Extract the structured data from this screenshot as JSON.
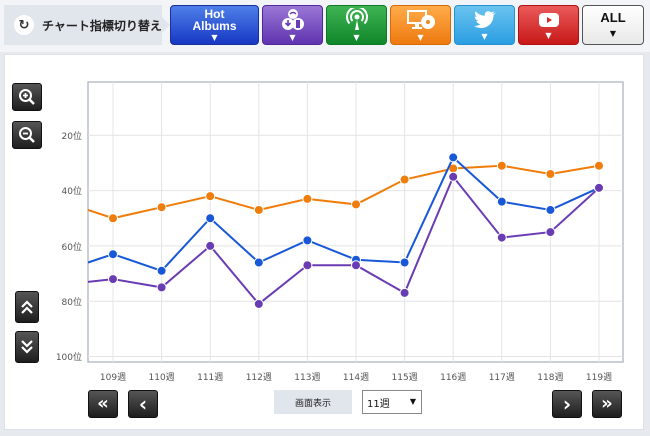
{
  "header": {
    "switch_label": "チャート指標切り替え",
    "switch_icon": "refresh-icon",
    "tabs": [
      {
        "name": "hot-albums",
        "label": "Hot Albums",
        "label_line1": "Hot",
        "label_line2": "Albums",
        "color": "#2148d2"
      },
      {
        "name": "download",
        "icon": "download-icon",
        "color": "#7348c2"
      },
      {
        "name": "radio",
        "icon": "radio-icon",
        "color": "#1b9a36"
      },
      {
        "name": "pc-cd",
        "icon": "pc-cd-icon",
        "color": "#f08a20"
      },
      {
        "name": "twitter",
        "icon": "twitter-icon",
        "color": "#38a8e6"
      },
      {
        "name": "youtube",
        "icon": "youtube-icon",
        "color": "#d42a2a"
      },
      {
        "name": "all",
        "label": "ALL",
        "color": "#f0f0f0"
      }
    ],
    "dropdown_arrow": "▼"
  },
  "controls": {
    "zoom_in": "zoom-in-icon",
    "zoom_out": "zoom-out-icon",
    "scroll_up": "double-chevron-up-icon",
    "scroll_down": "double-chevron-down-icon",
    "first": "«",
    "prev": "‹",
    "next": "›",
    "last": "»",
    "mode_label": "画面表示",
    "mode_value": "11週"
  },
  "chart_data": {
    "type": "line",
    "title": "",
    "xlabel": "",
    "ylabel": "",
    "categories": [
      "109週",
      "110週",
      "111週",
      "112週",
      "113週",
      "114週",
      "115週",
      "116週",
      "117週",
      "118週",
      "119週"
    ],
    "y_ticks": [
      "20位",
      "40位",
      "60位",
      "80位",
      "100位"
    ],
    "y_tick_values": [
      20,
      40,
      60,
      80,
      100
    ],
    "ylim": [
      0,
      100
    ],
    "y_inverted": true,
    "grid": true,
    "series": [
      {
        "name": "orange",
        "color": "#f07c0a",
        "values": [
          50,
          46,
          42,
          47,
          43,
          45,
          36,
          32,
          31,
          34,
          31
        ]
      },
      {
        "name": "blue",
        "color": "#1858d8",
        "values": [
          63,
          69,
          50,
          66,
          58,
          65,
          66,
          28,
          44,
          47,
          39
        ]
      },
      {
        "name": "purple",
        "color": "#6a3cb4",
        "values": [
          72,
          75,
          60,
          81,
          67,
          67,
          77,
          35,
          57,
          55,
          39
        ]
      }
    ],
    "left_edge_values": {
      "orange": 47,
      "blue": 66,
      "purple": 73
    }
  }
}
